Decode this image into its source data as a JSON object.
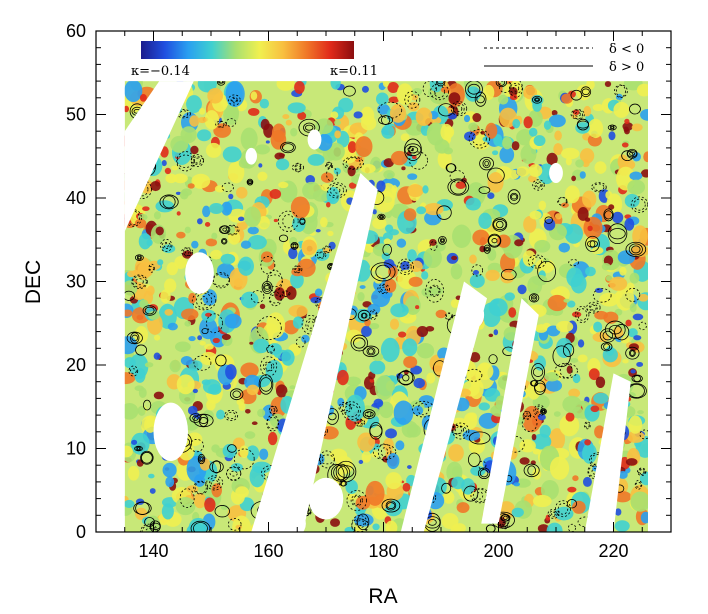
{
  "chart_data": {
    "type": "heatmap",
    "title": "",
    "xlabel": "RA",
    "ylabel": "DEC",
    "xlim": [
      130,
      230
    ],
    "ylim": [
      0,
      60
    ],
    "x_ticks": [
      "140",
      "160",
      "180",
      "200",
      "220"
    ],
    "y_ticks": [
      "0",
      "10",
      "20",
      "30",
      "40",
      "50",
      "60"
    ],
    "colorbar": {
      "min_label": "κ=−0.14",
      "max_label": "κ=0.11",
      "min": -0.14,
      "max": 0.11,
      "colors": [
        "#1c1c8c",
        "#1f4fe0",
        "#2aa0f0",
        "#3fd0d0",
        "#a8e070",
        "#f0f050",
        "#f8c040",
        "#f07828",
        "#e02a1a",
        "#8b0e10"
      ]
    },
    "legend": {
      "position": "top-right",
      "entries": [
        {
          "label": "δ < 0",
          "style": "dashed"
        },
        {
          "label": "δ > 0",
          "style": "solid"
        }
      ]
    },
    "field_extent": {
      "ra": [
        135,
        226
      ],
      "dec": [
        0,
        54
      ]
    },
    "masked_regions": [
      {
        "ra_center": 139,
        "dec_center": 48,
        "note": "diagonal gap top-left"
      },
      {
        "ra_center": 168,
        "dec_center": 20,
        "note": "diagonal gap"
      },
      {
        "ra_center": 190,
        "dec_center": 15,
        "note": "diagonal gap"
      },
      {
        "ra_center": 201,
        "dec_center": 15,
        "note": "diagonal gap"
      },
      {
        "ra_center": 218,
        "dec_center": 14,
        "note": "diagonal gap"
      },
      {
        "ra_center": 143,
        "dec_center": 12,
        "note": "hole"
      },
      {
        "ra_center": 148,
        "dec_center": 31,
        "note": "hole"
      },
      {
        "ra_center": 170,
        "dec_center": 4,
        "note": "hole"
      },
      {
        "ra_center": 163,
        "dec_center": 1,
        "note": "hole"
      }
    ]
  }
}
